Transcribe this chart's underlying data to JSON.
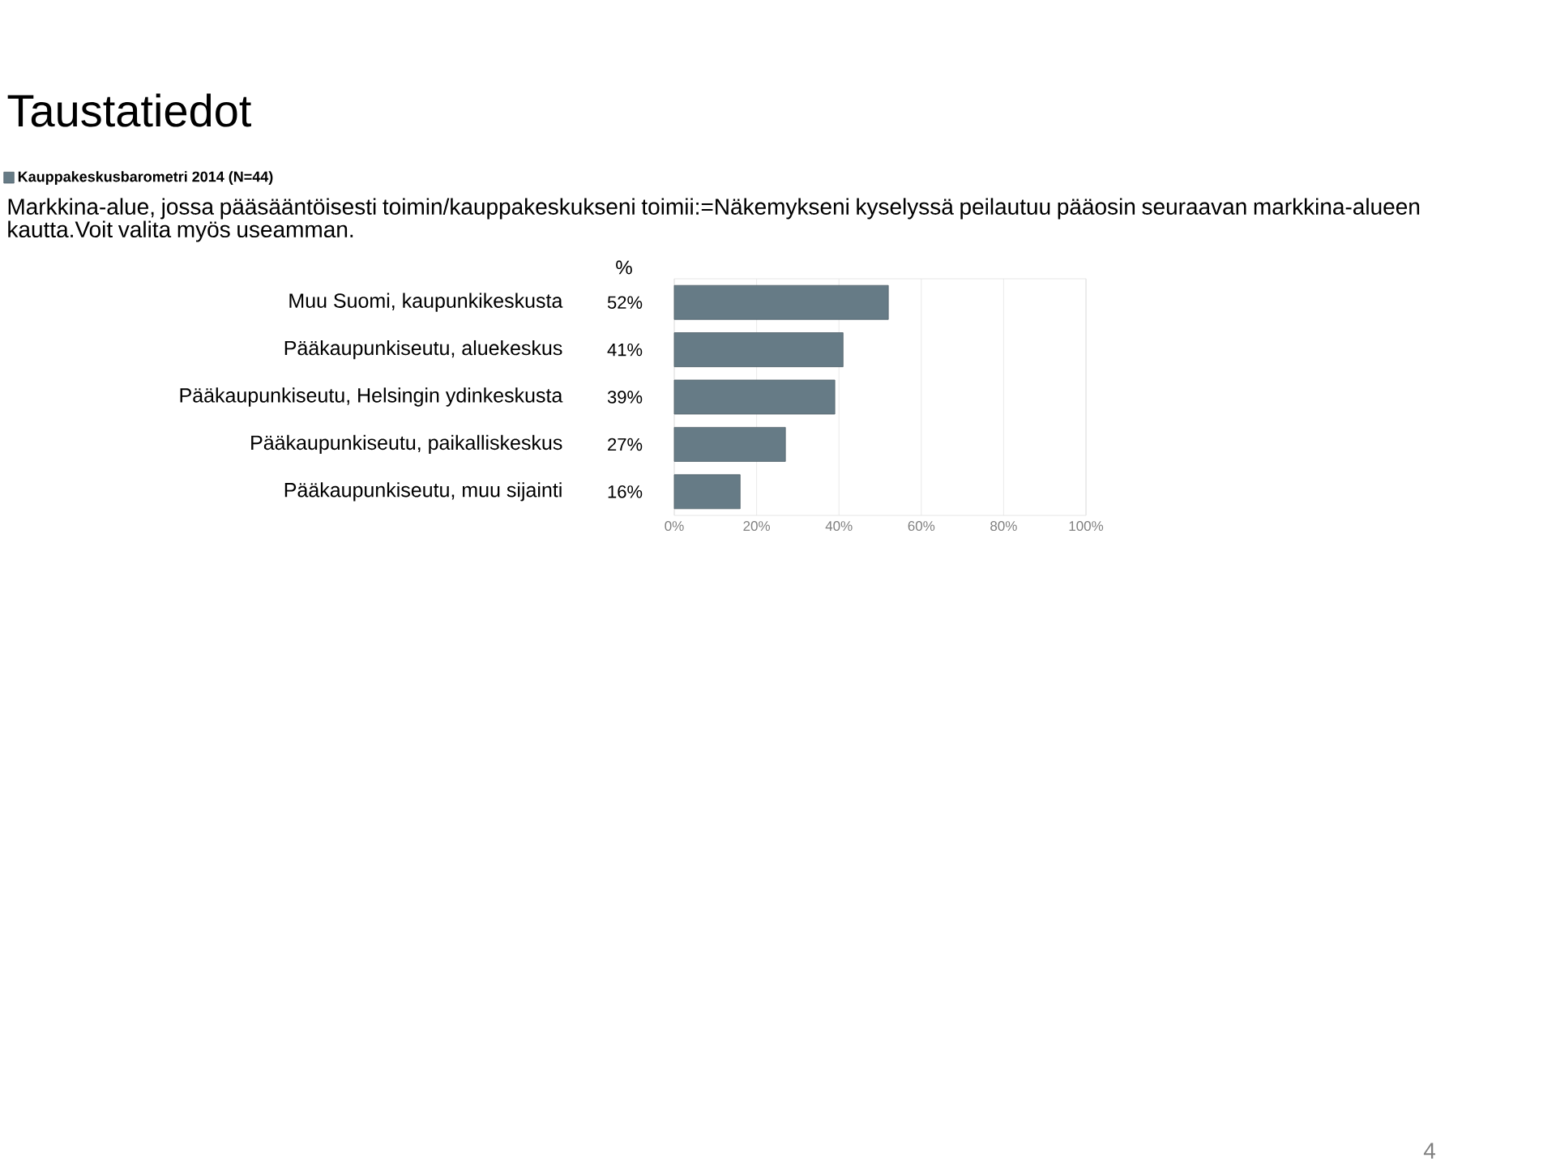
{
  "chart_data": {
    "type": "bar",
    "orientation": "horizontal",
    "title": "Taustatiedot",
    "subtitle": "Markkina-alue, jossa pääsääntöisesti toimin/kauppakeskukseni toimii:=Näkemykseni kyselyssä peilautuu pääosin seuraavan markkina-alueen kautta.Voit valita myös useamman.",
    "categories": [
      "Muu Suomi, kaupunkikeskusta",
      "Pääkaupunkiseutu, aluekeskus",
      "Pääkaupunkiseutu, Helsingin ydinkeskusta",
      "Pääkaupunkiseutu, paikalliskeskus",
      "Pääkaupunkiseutu, muu sijainti"
    ],
    "series": [
      {
        "name": "Kauppakeskusbarometri 2014 (N=44)",
        "color": "#667b86",
        "values": [
          52,
          41,
          39,
          27,
          16
        ],
        "value_labels": [
          "52%",
          "41%",
          "39%",
          "27%",
          "16%"
        ]
      }
    ],
    "xlim": [
      0,
      100
    ],
    "xticks": [
      {
        "value": 0,
        "label": "0%"
      },
      {
        "value": 20,
        "label": "20%"
      },
      {
        "value": 40,
        "label": "40%"
      },
      {
        "value": 60,
        "label": "60%"
      },
      {
        "value": 80,
        "label": "80%"
      },
      {
        "value": 100,
        "label": "100%"
      }
    ],
    "grid": "x",
    "legend": "top left",
    "annotations": [
      "%",
      "4"
    ]
  }
}
